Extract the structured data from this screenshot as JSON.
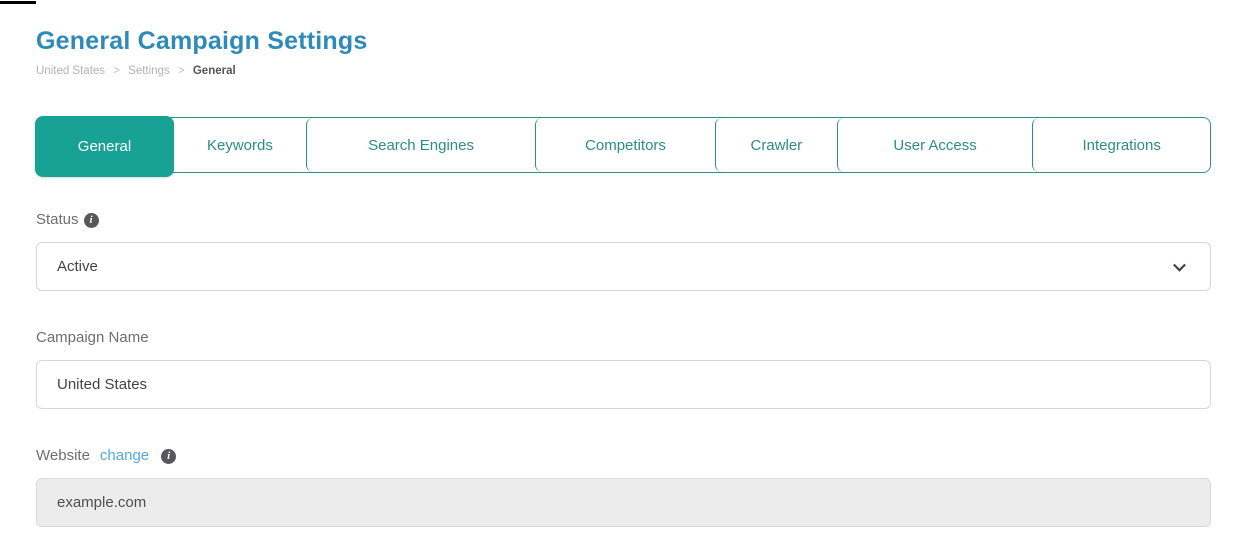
{
  "header": {
    "title": "General Campaign Settings",
    "breadcrumb": {
      "campaign": "United States",
      "section": "Settings",
      "page": "General",
      "separator": ">"
    }
  },
  "tabs": [
    {
      "label": "General",
      "active": true
    },
    {
      "label": "Keywords",
      "active": false
    },
    {
      "label": "Search Engines",
      "active": false
    },
    {
      "label": "Competitors",
      "active": false
    },
    {
      "label": "Crawler",
      "active": false
    },
    {
      "label": "User Access",
      "active": false
    },
    {
      "label": "Integrations",
      "active": false
    }
  ],
  "form": {
    "status": {
      "label": "Status",
      "value": "Active",
      "icon": "info-circle"
    },
    "campaign_name": {
      "label": "Campaign Name",
      "value": "United States"
    },
    "website": {
      "label": "Website",
      "change_link_label": "change",
      "icon": "info-circle",
      "value": "example.com",
      "state": "disabled"
    }
  },
  "colors": {
    "title_blue": "#2e8ab8",
    "active_tab_teal": "#18a195",
    "tab_border_teal": "#2a9086",
    "link_blue": "#55a8e0",
    "label_gray": "#6e6e6e",
    "breadcrumb_gray": "#b2b2b2",
    "disabled_input_bg": "#ececec"
  }
}
